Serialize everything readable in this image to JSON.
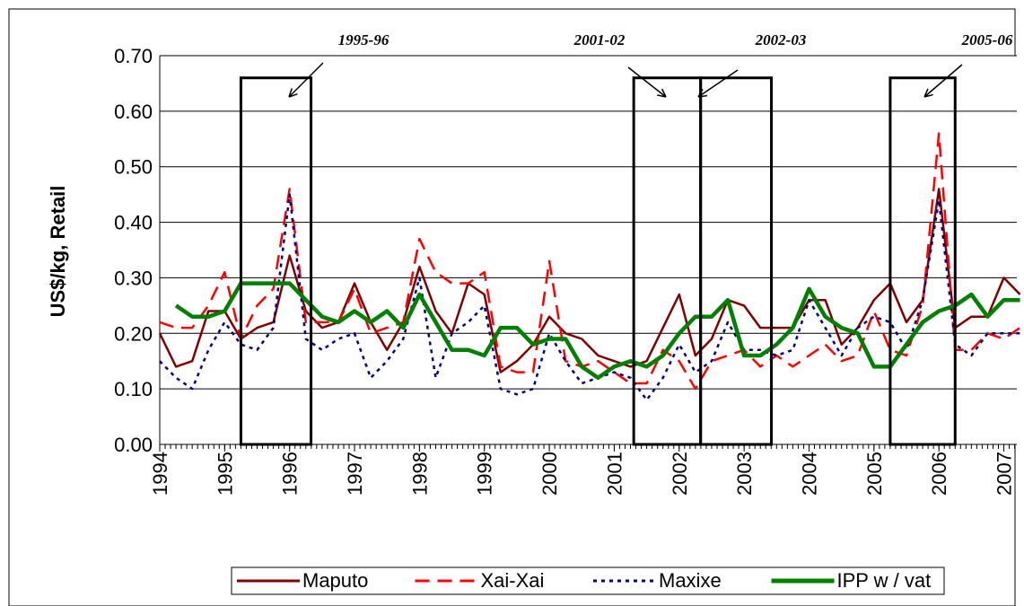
{
  "chart_data": {
    "type": "line",
    "y_label": "US$/kg, Retail",
    "x": [
      1994,
      1994.25,
      1994.5,
      1994.75,
      1995,
      1995.25,
      1995.5,
      1995.75,
      1996,
      1996.25,
      1996.5,
      1996.75,
      1997,
      1997.25,
      1997.5,
      1997.75,
      1998,
      1998.25,
      1998.5,
      1998.75,
      1999,
      1999.25,
      1999.5,
      1999.75,
      2000,
      2000.25,
      2000.5,
      2000.75,
      2001,
      2001.25,
      2001.5,
      2001.75,
      2002,
      2002.25,
      2002.5,
      2002.75,
      2003,
      2003.25,
      2003.5,
      2003.75,
      2004,
      2004.25,
      2004.5,
      2004.75,
      2005,
      2005.25,
      2005.5,
      2005.75,
      2006,
      2006.25,
      2006.5,
      2006.75,
      2007,
      2007.25
    ],
    "series": [
      {
        "name": "Maputo",
        "color": "#800000",
        "values": [
          0.2,
          0.14,
          0.15,
          0.24,
          0.24,
          0.19,
          0.21,
          0.22,
          0.34,
          0.24,
          0.21,
          0.22,
          0.29,
          0.22,
          0.17,
          0.22,
          0.32,
          0.24,
          0.2,
          0.29,
          0.27,
          0.13,
          0.15,
          0.18,
          0.23,
          0.2,
          0.19,
          0.16,
          0.15,
          0.14,
          0.15,
          0.21,
          0.27,
          0.16,
          0.19,
          0.26,
          0.25,
          0.21,
          0.21,
          0.21,
          0.26,
          0.26,
          0.18,
          0.21,
          0.26,
          0.29,
          0.22,
          0.26,
          0.46,
          0.21,
          0.23,
          0.23,
          0.3,
          0.27
        ]
      },
      {
        "name": "Xai-Xai",
        "color": "#ff0000",
        "values": [
          0.22,
          0.21,
          0.21,
          0.25,
          0.31,
          0.19,
          0.25,
          0.28,
          0.46,
          0.22,
          0.22,
          0.22,
          0.28,
          0.2,
          0.21,
          0.22,
          0.37,
          0.31,
          0.29,
          0.29,
          0.31,
          0.14,
          0.13,
          0.13,
          0.33,
          0.15,
          0.14,
          0.15,
          0.13,
          0.11,
          0.11,
          0.17,
          0.15,
          0.1,
          0.15,
          0.16,
          0.17,
          0.14,
          0.16,
          0.14,
          0.16,
          0.18,
          0.15,
          0.16,
          0.24,
          0.17,
          0.16,
          0.25,
          0.56,
          0.17,
          0.17,
          0.2,
          0.19,
          0.21
        ]
      },
      {
        "name": "Maxixe",
        "color": "#000080",
        "values": [
          0.15,
          0.12,
          0.1,
          0.17,
          0.22,
          0.18,
          0.17,
          0.21,
          0.45,
          0.19,
          0.17,
          0.19,
          0.2,
          0.12,
          0.15,
          0.19,
          0.3,
          0.12,
          0.2,
          0.22,
          0.25,
          0.1,
          0.09,
          0.1,
          0.2,
          0.15,
          0.11,
          0.12,
          0.13,
          0.12,
          0.08,
          0.12,
          0.18,
          0.13,
          0.15,
          0.22,
          0.17,
          0.17,
          0.16,
          0.17,
          0.26,
          0.21,
          0.16,
          0.21,
          0.23,
          0.22,
          0.17,
          0.26,
          0.44,
          0.18,
          0.16,
          0.2,
          0.2,
          0.2
        ]
      },
      {
        "name": "IPP w / vat",
        "color": "#008000",
        "values": [
          null,
          0.25,
          0.23,
          0.23,
          0.24,
          0.29,
          0.29,
          0.29,
          0.29,
          0.26,
          0.23,
          0.22,
          0.24,
          0.22,
          0.24,
          0.21,
          0.27,
          0.22,
          0.17,
          0.17,
          0.16,
          0.21,
          0.21,
          0.18,
          0.19,
          0.19,
          0.14,
          0.12,
          0.14,
          0.15,
          0.14,
          0.16,
          0.2,
          0.23,
          0.23,
          0.26,
          0.16,
          0.16,
          0.18,
          0.21,
          0.28,
          0.23,
          0.21,
          0.2,
          0.14,
          0.14,
          0.18,
          0.22,
          0.24,
          0.25,
          0.27,
          0.23,
          0.26,
          0.26
        ]
      }
    ],
    "xlim": [
      1994,
      2007.2
    ],
    "xticks": [
      1994,
      1995,
      1996,
      1997,
      1998,
      1999,
      2000,
      2001,
      2002,
      2003,
      2004,
      2005,
      2006,
      2007
    ],
    "ylim": [
      0,
      0.7
    ],
    "yticks": [
      {
        "value": 0,
        "label": "0.00"
      },
      {
        "value": 0.1,
        "label": "0.10"
      },
      {
        "value": 0.2,
        "label": "0.20"
      },
      {
        "value": 0.3,
        "label": "0.30"
      },
      {
        "value": 0.4,
        "label": "0.40"
      },
      {
        "value": 0.5,
        "label": "0.50"
      },
      {
        "value": 0.6,
        "label": "0.60"
      },
      {
        "value": 0.7,
        "label": "0.70"
      }
    ],
    "grid": true,
    "legend": "bottom",
    "annotations": [
      {
        "label": "1995-96",
        "x0": 1995.25,
        "x1": 1996.33,
        "y1": 0.66
      },
      {
        "label": "2001-02",
        "x0": 2001.3,
        "x1": 2002.33,
        "y1": 0.66
      },
      {
        "label": "2002-03",
        "x0": 2002.33,
        "x1": 2003.42,
        "y1": 0.66
      },
      {
        "label": "2005-06",
        "x0": 2005.25,
        "x1": 2006.25,
        "y1": 0.66
      }
    ]
  }
}
